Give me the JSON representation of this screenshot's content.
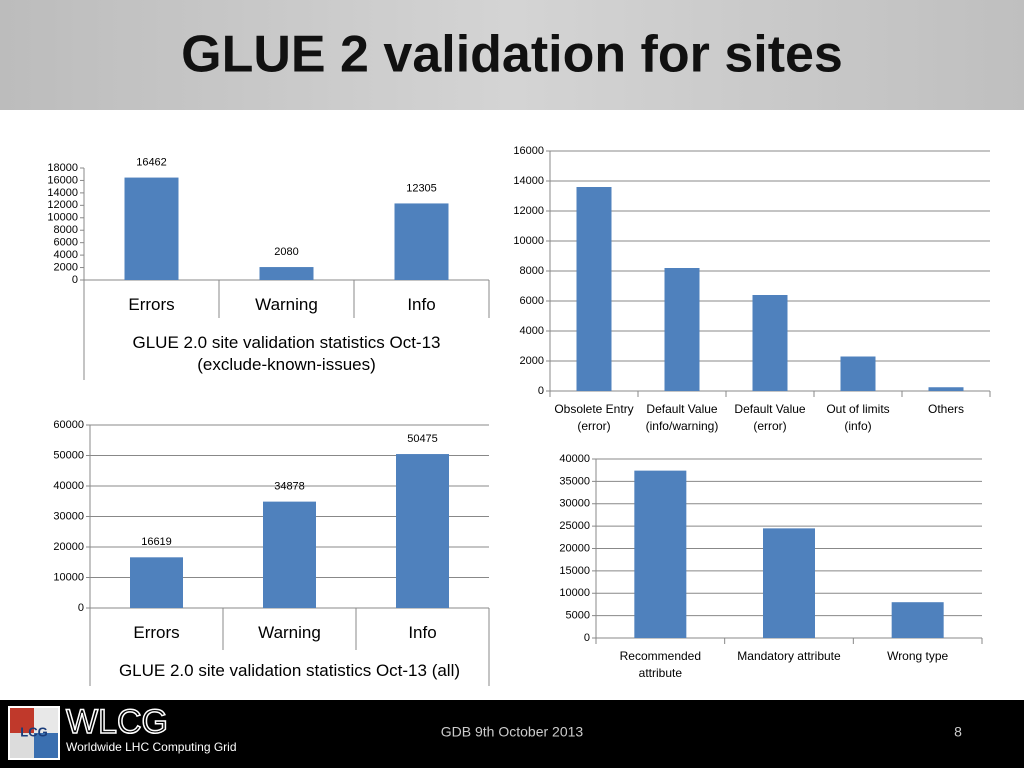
{
  "header": {
    "title": "GLUE 2 validation for sites"
  },
  "chart_data": [
    {
      "type": "bar",
      "title": "GLUE 2.0 site validation statistics Oct-13 (exclude-known-issues)",
      "categories": [
        "Errors",
        "Warning",
        "Info"
      ],
      "values": [
        16462,
        2080,
        12305
      ],
      "color": "#4f81bd",
      "ylim": [
        0,
        18000
      ],
      "yticks": [
        0,
        2000,
        4000,
        6000,
        8000,
        10000,
        12000,
        14000,
        16000,
        18000
      ],
      "grid": false,
      "data_labels": true
    },
    {
      "type": "bar",
      "categories": [
        "Obsolete Entry (error)",
        "Default Value (info/warning)",
        "Default Value (error)",
        "Out of limits (info)",
        "Others"
      ],
      "values": [
        13600,
        8200,
        6400,
        2300,
        250
      ],
      "color": "#4f81bd",
      "ylim": [
        0,
        16000
      ],
      "yticks": [
        0,
        2000,
        4000,
        6000,
        8000,
        10000,
        12000,
        14000,
        16000
      ],
      "grid": true,
      "data_labels": false
    },
    {
      "type": "bar",
      "title": "GLUE 2.0 site validation statistics Oct-13 (all)",
      "categories": [
        "Errors",
        "Warning",
        "Info"
      ],
      "values": [
        16619,
        34878,
        50475
      ],
      "color": "#4f81bd",
      "ylim": [
        0,
        60000
      ],
      "yticks": [
        0,
        10000,
        20000,
        30000,
        40000,
        50000,
        60000
      ],
      "grid": true,
      "data_labels": true
    },
    {
      "type": "bar",
      "categories": [
        "Recommended attribute",
        "Mandatory attribute",
        "Wrong type"
      ],
      "values": [
        37400,
        24500,
        8000
      ],
      "color": "#4f81bd",
      "ylim": [
        0,
        40000
      ],
      "yticks": [
        0,
        5000,
        10000,
        15000,
        20000,
        25000,
        30000,
        35000,
        40000
      ],
      "grid": true,
      "data_labels": false
    }
  ],
  "footer": {
    "logo_icon": "LCG",
    "logo_text": "WLCG",
    "logo_subtitle": "Worldwide LHC Computing Grid",
    "event": "GDB 9th October 2013",
    "page": "8"
  }
}
